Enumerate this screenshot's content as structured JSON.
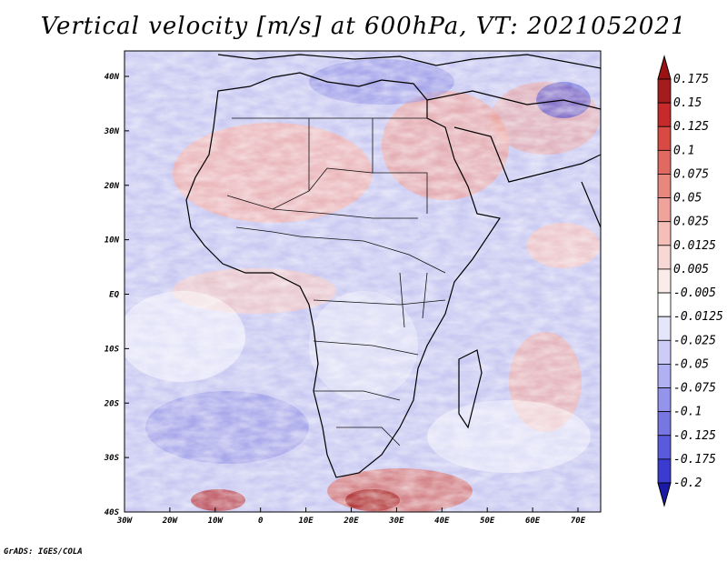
{
  "title": "Vertical velocity [m/s] at 600hPa, VT: 2021052021",
  "footer": "GrADS: IGES/COLA",
  "map": {
    "region": "Africa",
    "lat_labels": [
      "40N",
      "30N",
      "20N",
      "10N",
      "EQ",
      "10S",
      "20S",
      "30S",
      "40S"
    ],
    "lon_labels": [
      "30W",
      "20W",
      "10W",
      "0",
      "10E",
      "20E",
      "30E",
      "40E",
      "50E",
      "60E",
      "70E"
    ]
  },
  "colorbar": {
    "levels": [
      {
        "label": "0.175",
        "color": "#a51c1c"
      },
      {
        "label": "0.15",
        "color": "#c62a2a"
      },
      {
        "label": "0.125",
        "color": "#d84a44"
      },
      {
        "label": "0.1",
        "color": "#e06a62"
      },
      {
        "label": "0.075",
        "color": "#e8877e"
      },
      {
        "label": "0.05",
        "color": "#efa39b"
      },
      {
        "label": "0.025",
        "color": "#f4bfb8"
      },
      {
        "label": "0.0125",
        "color": "#f8d8d4"
      },
      {
        "label": "0.005",
        "color": "#fbecea"
      },
      {
        "label": "-0.005",
        "color": "#ffffff"
      },
      {
        "label": "-0.0125",
        "color": "#e6e6fb"
      },
      {
        "label": "-0.025",
        "color": "#ccccf7"
      },
      {
        "label": "-0.05",
        "color": "#b0b0f2"
      },
      {
        "label": "-0.075",
        "color": "#9494ec"
      },
      {
        "label": "-0.1",
        "color": "#7777e4"
      },
      {
        "label": "-0.125",
        "color": "#5a5adc"
      },
      {
        "label": "-0.175",
        "color": "#3b3bcf"
      },
      {
        "label": "-0.2",
        "color": "#2424b8"
      }
    ],
    "top_color": "#9c1212",
    "bottom_color": "#1a1aa6"
  }
}
